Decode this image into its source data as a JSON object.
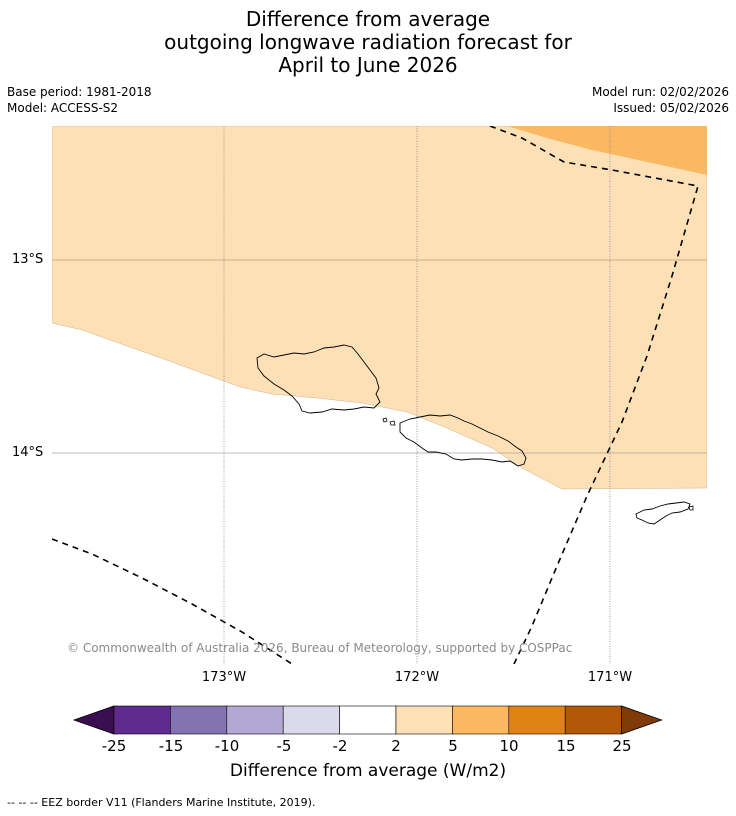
{
  "title": {
    "line1": "Difference from average",
    "line2": "outgoing longwave radiation forecast for",
    "line3": "April to June 2026"
  },
  "meta": {
    "base_period": "Base period: 1981-2018",
    "model": "Model: ACCESS-S2",
    "model_run": "Model run: 02/02/2026",
    "issued": "Issued: 05/02/2026"
  },
  "map": {
    "lat_labels": [
      "13°S",
      "14°S"
    ],
    "lon_labels": [
      "173°W",
      "172°W",
      "171°W"
    ],
    "copyright": "© Commonwealth of Australia 2026, Bureau of Meteorology, supported by COSPPac",
    "fill_colors": {
      "light_orange": "#fde0b6",
      "mid_orange": "#fbb862"
    }
  },
  "colorbar": {
    "ticks": [
      "-25",
      "-15",
      "-10",
      "-5",
      "-2",
      "2",
      "5",
      "10",
      "15",
      "25"
    ],
    "colors": [
      "#3b0e52",
      "#5e2a8c",
      "#8373b0",
      "#b2a8d3",
      "#dadaeb",
      "#ffffff",
      "#fde0b6",
      "#fbb862",
      "#e08214",
      "#b35806",
      "#7f3b08"
    ],
    "label": "Difference from average (W/m2)"
  },
  "footnote": "--  --  -- EEZ border V11 (Flanders Marine Institute, 2019)."
}
